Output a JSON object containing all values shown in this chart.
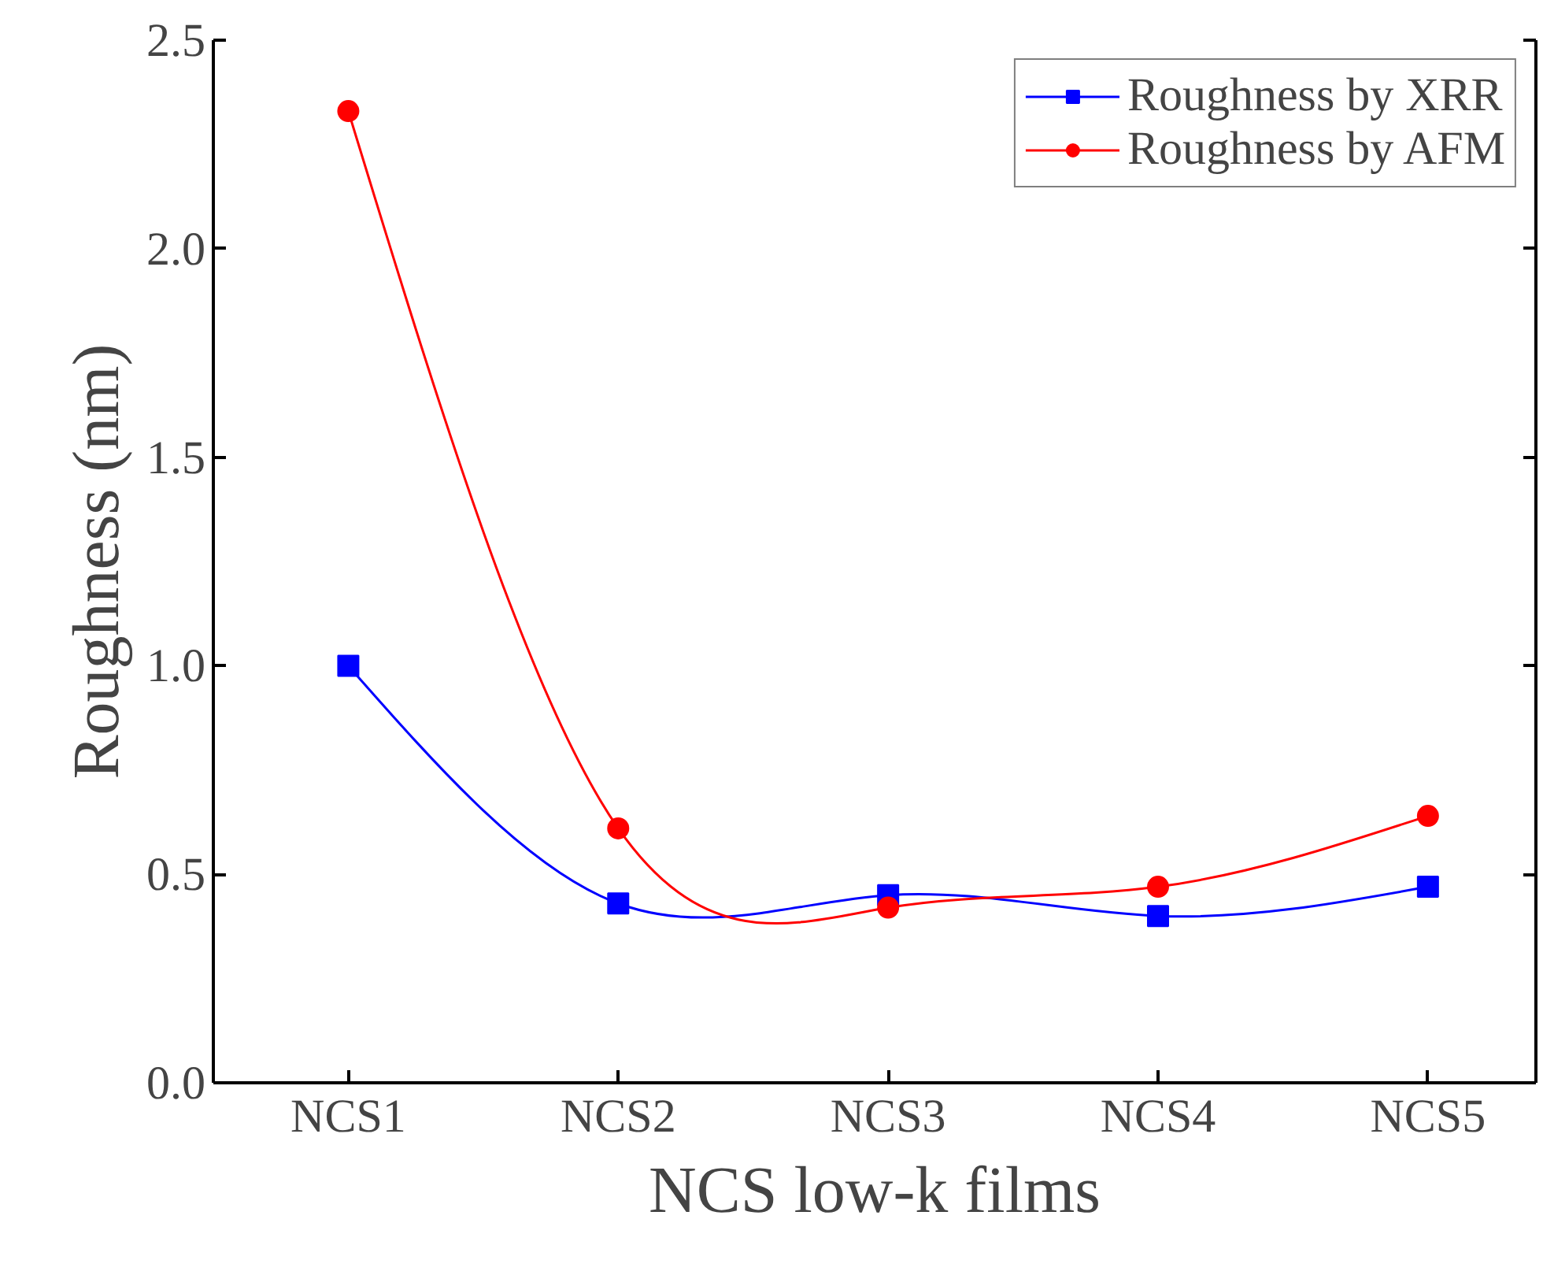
{
  "chart_data": {
    "type": "line",
    "xlabel": "NCS low-k films",
    "ylabel": "Roughness (nm)",
    "categories": [
      "NCS1",
      "NCS2",
      "NCS3",
      "NCS4",
      "NCS5"
    ],
    "series": [
      {
        "name": "Roughness by XRR",
        "color": "#0000ff",
        "marker": "square",
        "values": [
          1.0,
          0.43,
          0.45,
          0.4,
          0.47
        ]
      },
      {
        "name": "Roughness by AFM",
        "color": "#ff0000",
        "marker": "circle",
        "values": [
          2.33,
          0.61,
          0.42,
          0.47,
          0.64
        ]
      }
    ],
    "ylim": [
      0,
      2.5
    ],
    "yticks": [
      {
        "value": 0,
        "label": "0.0"
      },
      {
        "value": 0.5,
        "label": "0.5"
      },
      {
        "value": 1,
        "label": "1.0"
      },
      {
        "value": 1.5,
        "label": "1.5"
      },
      {
        "value": 2,
        "label": "2.0"
      },
      {
        "value": 2.5,
        "label": "2.5"
      }
    ],
    "grid": false,
    "legend": "top right",
    "line_style": "solid"
  }
}
